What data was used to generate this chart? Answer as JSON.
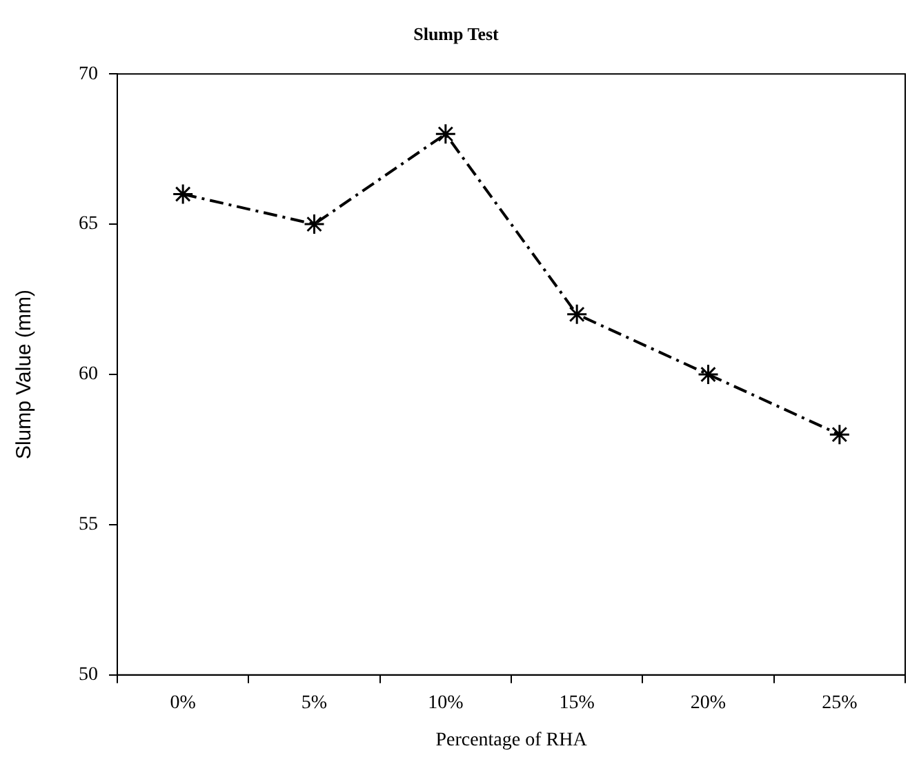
{
  "chart_data": {
    "type": "line",
    "title": "Slump Test",
    "xlabel": "Percentage of RHA",
    "ylabel": "Slump Value (mm)",
    "categories": [
      "0%",
      "5%",
      "10%",
      "15%",
      "20%",
      "25%"
    ],
    "series": [
      {
        "color": "#000000",
        "values": [
          66,
          65,
          68,
          62,
          60,
          58
        ]
      }
    ],
    "ylim": [
      50,
      70
    ],
    "yticks": [
      50,
      55,
      60,
      65,
      70
    ],
    "grid": false,
    "legend": false,
    "marker": "cross",
    "line_style": "dashed"
  }
}
